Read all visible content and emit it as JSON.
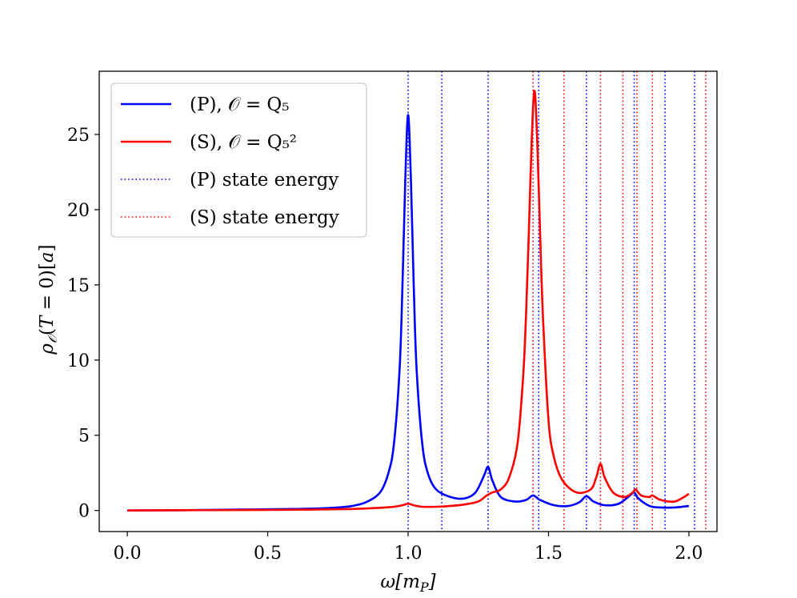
{
  "chart_data": {
    "type": "line",
    "xlabel": "ω[m_P]",
    "ylabel": "ρ_O(T = 0)[a]",
    "xlim": [
      -0.1,
      2.1
    ],
    "ylim": [
      -1.4,
      29.2
    ],
    "xticks": [
      0.0,
      0.5,
      1.0,
      1.5,
      2.0
    ],
    "xtick_labels": [
      "0.0",
      "0.5",
      "1.0",
      "1.5",
      "2.0"
    ],
    "yticks": [
      0,
      5,
      10,
      15,
      20,
      25
    ],
    "ytick_labels": [
      "0",
      "5",
      "10",
      "15",
      "20",
      "25"
    ],
    "grid": false,
    "legend_position": "top-left",
    "series": [
      {
        "name": "(P), O = Q5",
        "legend_label": "(P), 𝒪 = Q₅",
        "color": "#0000ff",
        "style": "solid",
        "x": [
          0.0,
          0.1,
          0.2,
          0.3,
          0.4,
          0.5,
          0.6,
          0.7,
          0.75,
          0.8,
          0.85,
          0.9,
          0.93,
          0.95,
          0.97,
          0.98,
          0.99,
          1.0,
          1.01,
          1.02,
          1.03,
          1.05,
          1.07,
          1.1,
          1.15,
          1.2,
          1.24,
          1.27,
          1.285,
          1.3,
          1.33,
          1.38,
          1.42,
          1.445,
          1.47,
          1.52,
          1.57,
          1.61,
          1.635,
          1.66,
          1.7,
          1.75,
          1.79,
          1.805,
          1.82,
          1.86,
          1.9,
          1.95,
          2.0
        ],
        "y": [
          0.0,
          0.01,
          0.02,
          0.04,
          0.06,
          0.08,
          0.1,
          0.15,
          0.2,
          0.3,
          0.55,
          1.2,
          2.5,
          4.5,
          9.5,
          15.0,
          22.0,
          26.3,
          22.0,
          15.0,
          9.5,
          4.5,
          2.5,
          1.4,
          0.9,
          0.8,
          1.2,
          2.3,
          2.9,
          2.0,
          0.9,
          0.6,
          0.7,
          1.0,
          0.7,
          0.35,
          0.3,
          0.55,
          0.95,
          0.6,
          0.35,
          0.45,
          1.0,
          1.2,
          0.8,
          0.3,
          0.2,
          0.2,
          0.3
        ]
      },
      {
        "name": "(S), O = Q5^2",
        "legend_label": "(S), 𝒪 = Q₅²",
        "color": "#ff0000",
        "style": "solid",
        "x": [
          0.0,
          0.2,
          0.4,
          0.6,
          0.8,
          0.9,
          0.95,
          0.98,
          1.0,
          1.02,
          1.05,
          1.1,
          1.15,
          1.2,
          1.25,
          1.28,
          1.3,
          1.33,
          1.36,
          1.39,
          1.41,
          1.42,
          1.43,
          1.44,
          1.45,
          1.46,
          1.47,
          1.48,
          1.5,
          1.52,
          1.55,
          1.6,
          1.65,
          1.67,
          1.685,
          1.7,
          1.73,
          1.77,
          1.8,
          1.81,
          1.83,
          1.86,
          1.87,
          1.9,
          1.95,
          2.0
        ],
        "y": [
          0.0,
          0.02,
          0.03,
          0.05,
          0.1,
          0.18,
          0.25,
          0.35,
          0.45,
          0.35,
          0.25,
          0.25,
          0.3,
          0.4,
          0.6,
          1.0,
          1.2,
          1.4,
          2.2,
          4.5,
          9.0,
          13.0,
          18.5,
          24.5,
          27.9,
          24.5,
          18.5,
          13.0,
          6.0,
          3.5,
          2.0,
          1.2,
          1.4,
          2.2,
          3.1,
          2.2,
          1.2,
          0.9,
          1.2,
          1.4,
          1.0,
          0.9,
          1.0,
          0.7,
          0.6,
          1.1
        ]
      }
    ],
    "vlines": [
      {
        "name": "(P) state energy",
        "color": "#0000ff",
        "style": "dotted",
        "x": [
          1.0,
          1.12,
          1.285,
          1.465,
          1.635,
          1.805,
          1.915,
          2.02
        ]
      },
      {
        "name": "(S) state energy",
        "color": "#ff0000",
        "style": "dotted",
        "x": [
          1.445,
          1.555,
          1.685,
          1.765,
          1.815,
          1.87,
          2.06
        ]
      }
    ],
    "legend": [
      {
        "label": "(P), 𝒪 = Q₅",
        "color": "#0000ff",
        "style": "solid"
      },
      {
        "label": "(S), 𝒪 = Q₅²",
        "color": "#ff0000",
        "style": "solid"
      },
      {
        "label": "(P) state energy",
        "color": "#0000ff",
        "style": "dotted"
      },
      {
        "label": "(S) state energy",
        "color": "#ff0000",
        "style": "dotted"
      }
    ]
  }
}
